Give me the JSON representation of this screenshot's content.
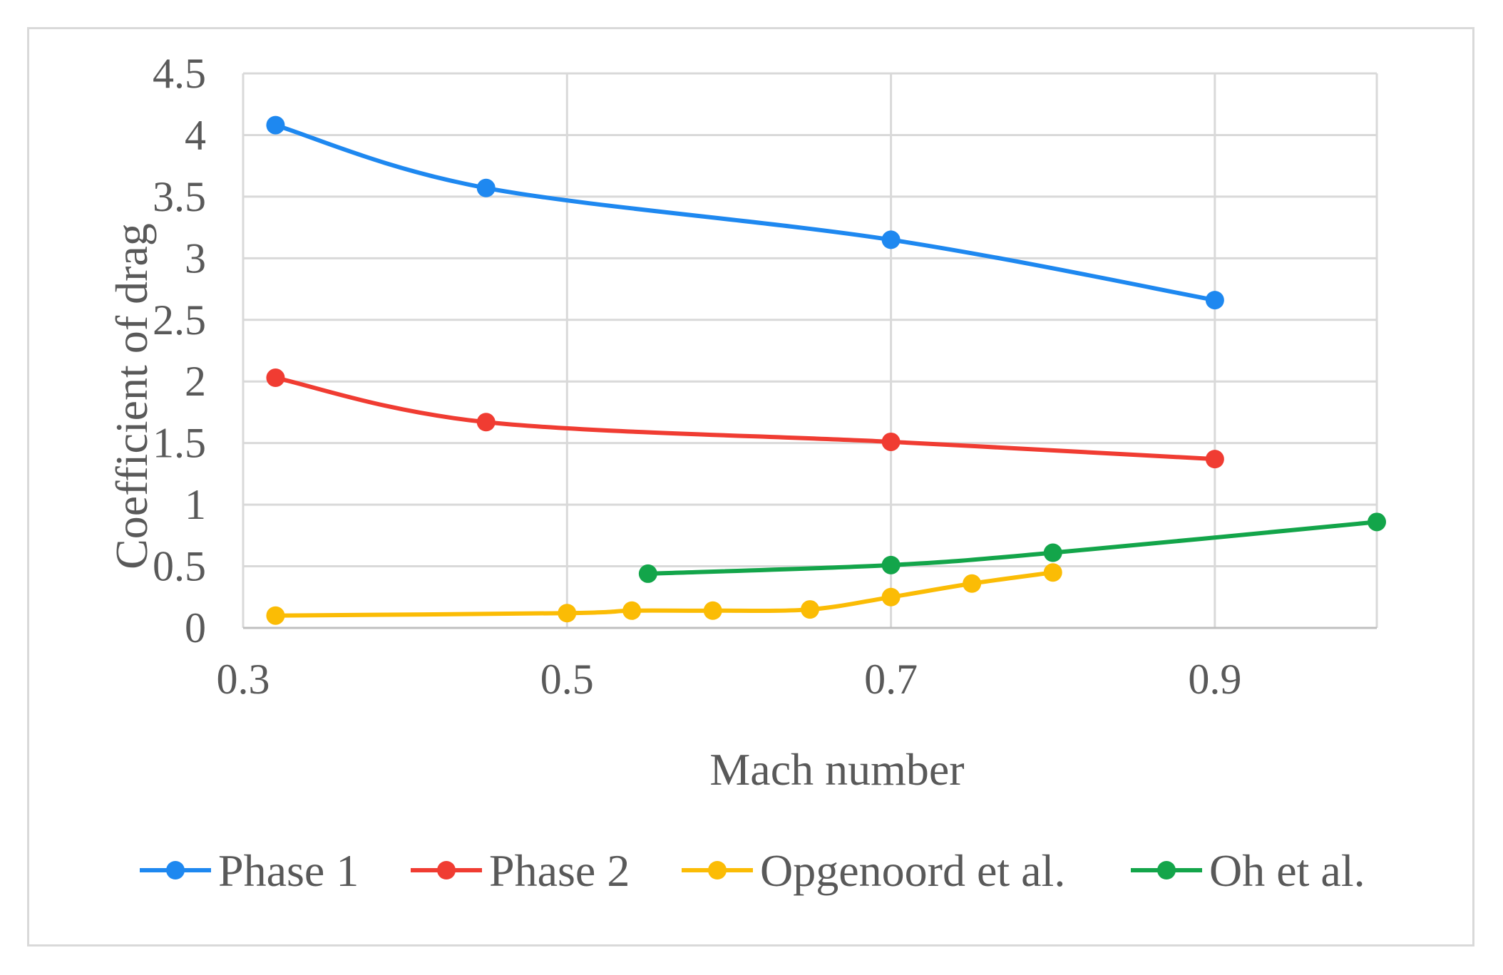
{
  "chart_data": {
    "type": "line",
    "title": "",
    "xlabel": "Mach number",
    "ylabel": "Coefficient of drag",
    "xlim": [
      0.3,
      1.0
    ],
    "ylim": [
      0,
      4.5
    ],
    "xticks": [
      0.3,
      0.5,
      0.7,
      0.9
    ],
    "xtick_labels": [
      "0.3",
      "0.5",
      "0.7",
      "0.9"
    ],
    "yticks": [
      0,
      0.5,
      1,
      1.5,
      2,
      2.5,
      3,
      3.5,
      4,
      4.5
    ],
    "ytick_labels": [
      "0",
      "0.5",
      "1",
      "1.5",
      "2",
      "2.5",
      "3",
      "3.5",
      "4",
      "4.5"
    ],
    "grid": true,
    "legend_position": "bottom",
    "series": [
      {
        "name": "Phase 1",
        "color": "#1e88f0",
        "x": [
          0.32,
          0.45,
          0.7,
          0.9
        ],
        "y": [
          4.08,
          3.57,
          3.15,
          2.66
        ]
      },
      {
        "name": "Phase 2",
        "color": "#f03c32",
        "x": [
          0.32,
          0.45,
          0.7,
          0.9
        ],
        "y": [
          2.03,
          1.67,
          1.51,
          1.37
        ]
      },
      {
        "name": "Opgenoord et al.",
        "color": "#fbbc05",
        "x": [
          0.32,
          0.5,
          0.54,
          0.59,
          0.65,
          0.7,
          0.75,
          0.8
        ],
        "y": [
          0.1,
          0.12,
          0.14,
          0.14,
          0.15,
          0.25,
          0.36,
          0.45
        ]
      },
      {
        "name": "Oh et al.",
        "color": "#13a54a",
        "x": [
          0.55,
          0.7,
          0.8,
          1.0
        ],
        "y": [
          0.44,
          0.51,
          0.61,
          0.86
        ]
      }
    ]
  }
}
